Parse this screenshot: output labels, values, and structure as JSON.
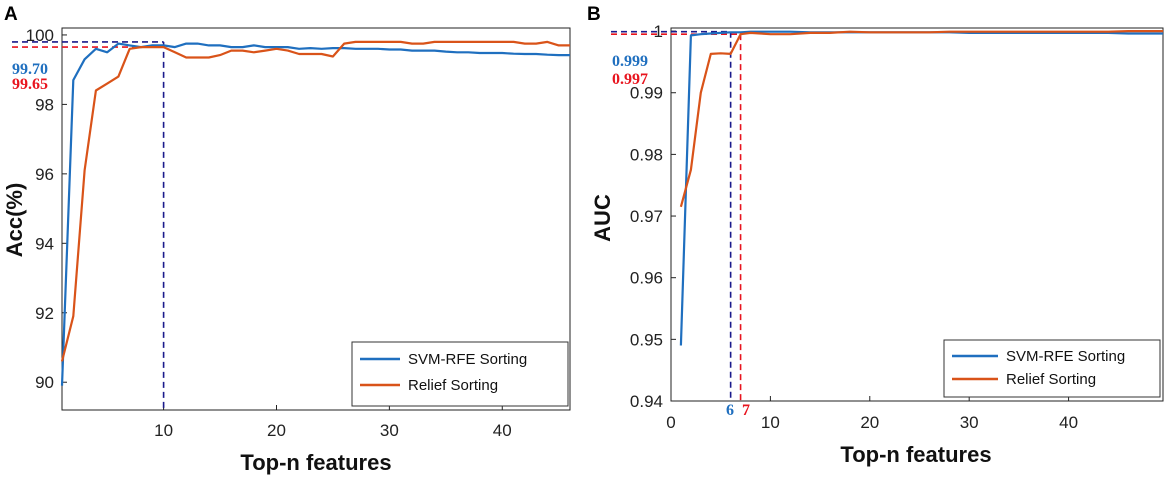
{
  "chart_data": [
    {
      "panel": "A",
      "type": "line",
      "title": "",
      "xlabel": "Top-n features",
      "ylabel": "Acc(%)",
      "xlim": [
        1,
        46
      ],
      "ylim": [
        89.2,
        100.2
      ],
      "xticks": [
        10,
        20,
        30,
        40
      ],
      "yticks": [
        90,
        92,
        94,
        96,
        98,
        100
      ],
      "legend_position": "bottom-right",
      "series": [
        {
          "name": "SVM-RFE Sorting",
          "color": "#1f6fbf",
          "x": [
            1,
            2,
            3,
            4,
            5,
            6,
            7,
            8,
            9,
            10,
            11,
            12,
            13,
            14,
            15,
            16,
            17,
            18,
            19,
            20,
            21,
            22,
            23,
            24,
            25,
            26,
            27,
            28,
            29,
            30,
            31,
            32,
            33,
            34,
            35,
            36,
            37,
            38,
            39,
            40,
            41,
            42,
            43,
            44,
            45,
            46
          ],
          "y": [
            89.9,
            98.7,
            99.3,
            99.6,
            99.5,
            99.75,
            99.7,
            99.65,
            99.7,
            99.7,
            99.65,
            99.75,
            99.75,
            99.7,
            99.7,
            99.65,
            99.65,
            99.7,
            99.65,
            99.65,
            99.65,
            99.6,
            99.62,
            99.6,
            99.62,
            99.62,
            99.6,
            99.6,
            99.6,
            99.58,
            99.58,
            99.55,
            99.55,
            99.55,
            99.52,
            99.5,
            99.5,
            99.48,
            99.48,
            99.48,
            99.46,
            99.45,
            99.45,
            99.43,
            99.42,
            99.42
          ]
        },
        {
          "name": "Relief Sorting",
          "color": "#d95319",
          "x": [
            1,
            2,
            3,
            4,
            5,
            6,
            7,
            8,
            9,
            10,
            11,
            12,
            13,
            14,
            15,
            16,
            17,
            18,
            19,
            20,
            21,
            22,
            23,
            24,
            25,
            26,
            27,
            28,
            29,
            30,
            31,
            32,
            33,
            34,
            35,
            36,
            37,
            38,
            39,
            40,
            41,
            42,
            43,
            44,
            45,
            46
          ],
          "y": [
            90.6,
            91.9,
            96.1,
            98.4,
            98.6,
            98.8,
            99.6,
            99.65,
            99.65,
            99.65,
            99.5,
            99.35,
            99.35,
            99.35,
            99.42,
            99.55,
            99.55,
            99.5,
            99.55,
            99.6,
            99.55,
            99.45,
            99.45,
            99.45,
            99.38,
            99.75,
            99.8,
            99.8,
            99.8,
            99.8,
            99.8,
            99.75,
            99.75,
            99.8,
            99.8,
            99.8,
            99.8,
            99.8,
            99.8,
            99.8,
            99.8,
            99.75,
            99.75,
            99.8,
            99.7,
            99.7
          ]
        }
      ],
      "annotations": [
        {
          "text": "99.70",
          "color": "#1f6fbf",
          "value": 99.7,
          "series": "SVM-RFE Sorting"
        },
        {
          "text": "99.65",
          "color": "#e8141e",
          "value": 99.65,
          "series": "Relief Sorting"
        }
      ],
      "reference_lines": [
        {
          "type": "horizontal",
          "y": 99.8,
          "color": "#1a1a8c",
          "style": "dashed"
        },
        {
          "type": "horizontal",
          "y": 99.65,
          "color": "#e8141e",
          "style": "dashed"
        },
        {
          "type": "vertical",
          "x": 10,
          "color": "#1a1a8c",
          "style": "dashed"
        }
      ]
    },
    {
      "panel": "B",
      "type": "line",
      "title": "",
      "xlabel": "Top-n features",
      "ylabel": "AUC",
      "xlim": [
        0,
        49.5
      ],
      "ylim": [
        0.94,
        1.0005
      ],
      "xticks": [
        0,
        10,
        20,
        30,
        40
      ],
      "yticks": [
        0.94,
        0.95,
        0.96,
        0.97,
        0.98,
        0.99,
        1
      ],
      "ytick_labels": [
        "0.94",
        "0.95",
        "0.96",
        "0.97",
        "0.98",
        "0.99",
        "1"
      ],
      "legend_position": "bottom-right",
      "series": [
        {
          "name": "SVM-RFE Sorting",
          "color": "#1f6fbf",
          "x": [
            1,
            2,
            3,
            4,
            5,
            6,
            7,
            8,
            9,
            10,
            12,
            14,
            16,
            18,
            20,
            22,
            24,
            26,
            28,
            30,
            32,
            34,
            36,
            38,
            40,
            42,
            44,
            46,
            48,
            49.5
          ],
          "y": [
            0.949,
            0.9993,
            0.9995,
            0.9996,
            0.9997,
            0.9998,
            0.9998,
            0.9999,
            0.9999,
            0.9999,
            0.9999,
            0.9998,
            0.9998,
            0.9998,
            0.9998,
            0.9998,
            0.9998,
            0.9998,
            0.9998,
            0.9997,
            0.9997,
            0.9997,
            0.9997,
            0.9997,
            0.9997,
            0.9997,
            0.9997,
            0.9996,
            0.9996,
            0.9996
          ]
        },
        {
          "name": "Relief Sorting",
          "color": "#d95319",
          "x": [
            1,
            2,
            3,
            4,
            5,
            6,
            7,
            8,
            9,
            10,
            12,
            14,
            16,
            18,
            20,
            22,
            24,
            26,
            28,
            30,
            32,
            34,
            36,
            38,
            40,
            42,
            44,
            46,
            48,
            49.5
          ],
          "y": [
            0.9715,
            0.9775,
            0.99,
            0.9963,
            0.9964,
            0.9963,
            0.9995,
            0.9997,
            0.9996,
            0.9995,
            0.9995,
            0.9997,
            0.9997,
            0.9999,
            0.9998,
            0.9998,
            0.9998,
            0.9998,
            0.9999,
            0.9999,
            0.9999,
            0.9999,
            0.9999,
            0.9999,
            0.9999,
            0.9999,
            0.9999,
            1.0,
            1.0,
            1.0
          ]
        }
      ],
      "annotations": [
        {
          "text": "0.999",
          "color": "#1f6fbf",
          "value": 0.999,
          "series": "SVM-RFE Sorting"
        },
        {
          "text": "0.997",
          "color": "#e8141e",
          "value": 0.997,
          "series": "Relief Sorting"
        },
        {
          "text": "6",
          "color": "#1f6fbf",
          "value": 6,
          "series": "SVM-RFE Sorting"
        },
        {
          "text": "7",
          "color": "#e8141e",
          "value": 7,
          "series": "Relief Sorting"
        }
      ],
      "reference_lines": [
        {
          "type": "horizontal",
          "y": 0.9999,
          "color": "#1a1a8c",
          "style": "dashed"
        },
        {
          "type": "horizontal",
          "y": 0.9995,
          "color": "#e8141e",
          "style": "dashed"
        },
        {
          "type": "vertical",
          "x": 6,
          "color": "#1a1a8c",
          "style": "dashed"
        },
        {
          "type": "vertical",
          "x": 7,
          "color": "#e8141e",
          "style": "dashed"
        }
      ]
    }
  ]
}
